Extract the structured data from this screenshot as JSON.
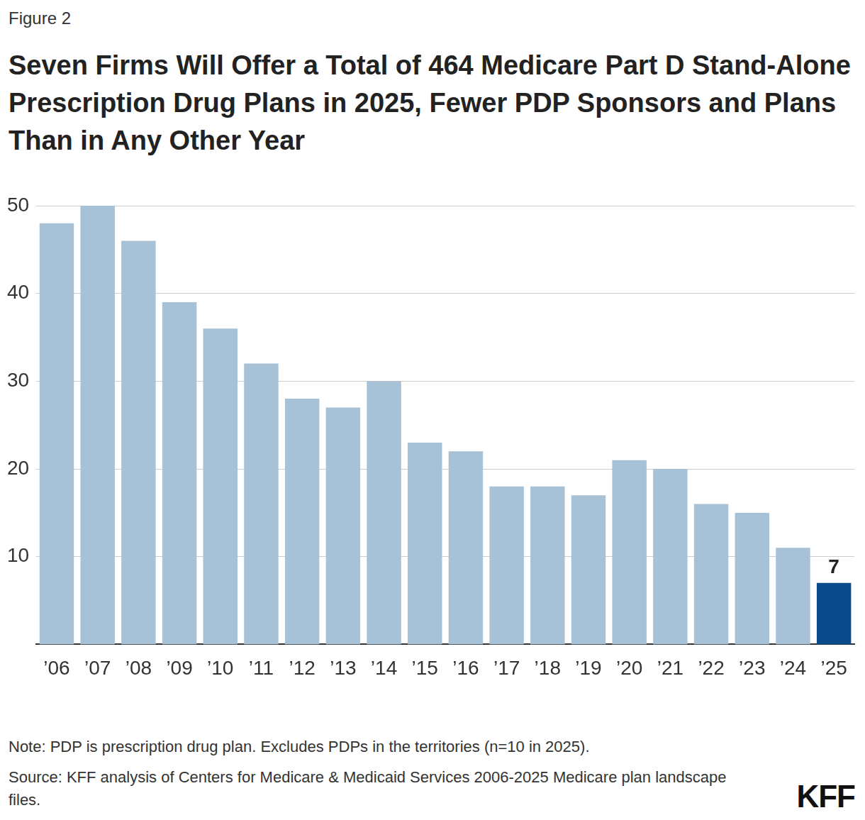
{
  "chart_data": {
    "type": "bar",
    "figure_label": "Figure 2",
    "title": "Seven Firms Will Offer a Total of 464 Medicare Part D Stand-Alone Prescription Drug Plans in 2025, Fewer PDP Sponsors and Plans Than in Any Other Year",
    "categories": [
      "’06",
      "’07",
      "’08",
      "’09",
      "’10",
      "’11",
      "’12",
      "’13",
      "’14",
      "’15",
      "’16",
      "’17",
      "’18",
      "’19",
      "’20",
      "’21",
      "’22",
      "’23",
      "’24",
      "’25"
    ],
    "values": [
      48,
      50,
      46,
      39,
      36,
      32,
      28,
      27,
      30,
      23,
      22,
      18,
      18,
      17,
      21,
      20,
      16,
      15,
      11,
      7
    ],
    "value_labels": [
      null,
      null,
      null,
      null,
      null,
      null,
      null,
      null,
      null,
      null,
      null,
      null,
      null,
      null,
      null,
      null,
      null,
      null,
      null,
      "7"
    ],
    "colors": [
      "#a7c1d7",
      "#a7c1d7",
      "#a7c1d7",
      "#a7c1d7",
      "#a7c1d7",
      "#a7c1d7",
      "#a7c1d7",
      "#a7c1d7",
      "#a7c1d7",
      "#a7c1d7",
      "#a7c1d7",
      "#a7c1d7",
      "#a7c1d7",
      "#a7c1d7",
      "#a7c1d7",
      "#a7c1d7",
      "#a7c1d7",
      "#a7c1d7",
      "#a7c1d7",
      "#0a4a8a"
    ],
    "data_labels": true,
    "ylim": [
      0,
      50
    ],
    "yticks": [
      10,
      20,
      30,
      40,
      50
    ],
    "grid": true,
    "note": "Note: PDP is prescription drug plan. Excludes PDPs in the territories (n=10 in 2025).",
    "source": "Source: KFF analysis of Centers for Medicare & Medicaid Services 2006-2025 Medicare plan landscape files.",
    "logo": "KFF"
  }
}
